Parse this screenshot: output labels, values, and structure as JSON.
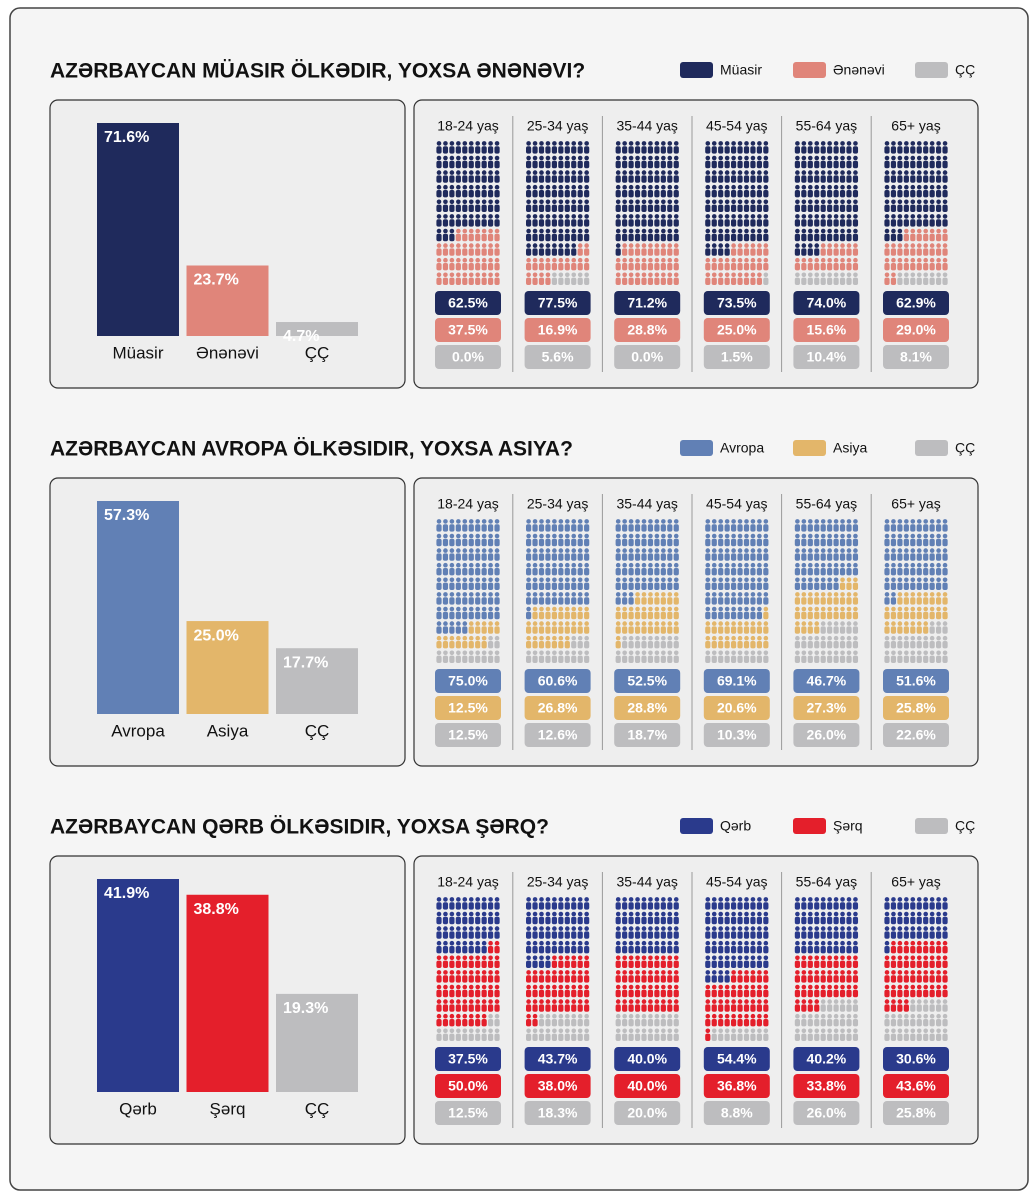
{
  "chart_data": [
    {
      "type": "bar",
      "title": "AZƏRBAYCAN MÜASIR ÖLKƏDIR, YOXSA ƏNƏNƏVI?",
      "categories": [
        "Müasir",
        "Ənənəvi",
        "ÇÇ"
      ],
      "values": [
        71.6,
        23.7,
        4.7
      ],
      "value_labels": [
        "71.6%",
        "23.7%",
        "4.7%"
      ],
      "colors": [
        "#1f2a5c",
        "#e0857a",
        "#bdbdbf"
      ]
    },
    {
      "type": "pictogram",
      "categories": [
        "18-24 yaş",
        "25-34 yaş",
        "35-44 yaş",
        "45-54 yaş",
        "55-64 yaş",
        "65+ yaş"
      ],
      "series": [
        {
          "name": "Müasir",
          "color": "#1f2a5c",
          "values": [
            62.5,
            77.5,
            71.2,
            73.5,
            74.0,
            62.9
          ],
          "value_labels": [
            "62.5%",
            "77.5%",
            "71.2%",
            "73.5%",
            "74.0%",
            "62.9%"
          ]
        },
        {
          "name": "Ənənəvi",
          "color": "#e0857a",
          "values": [
            37.5,
            16.9,
            28.8,
            25.0,
            15.6,
            29.0
          ],
          "value_labels": [
            "37.5%",
            "16.9%",
            "28.8%",
            "25.0%",
            "15.6%",
            "29.0%"
          ]
        },
        {
          "name": "ÇÇ",
          "color": "#bdbdbf",
          "values": [
            0.0,
            5.6,
            0.0,
            1.5,
            10.4,
            8.1
          ],
          "value_labels": [
            "0.0%",
            "5.6%",
            "0.0%",
            "1.5%",
            "10.4%",
            "8.1%"
          ]
        }
      ]
    },
    {
      "type": "bar",
      "title": "AZƏRBAYCAN AVROPA ÖLKƏSIDIR, YOXSA ASIYA?",
      "categories": [
        "Avropa",
        "Asiya",
        "ÇÇ"
      ],
      "values": [
        57.3,
        25.0,
        17.7
      ],
      "value_labels": [
        "57.3%",
        "25.0%",
        "17.7%"
      ],
      "colors": [
        "#6180b5",
        "#e3b66a",
        "#bdbdbf"
      ]
    },
    {
      "type": "pictogram",
      "categories": [
        "18-24 yaş",
        "25-34 yaş",
        "35-44 yaş",
        "45-54 yaş",
        "55-64 yaş",
        "65+ yaş"
      ],
      "series": [
        {
          "name": "Avropa",
          "color": "#6180b5",
          "values": [
            75.0,
            60.6,
            52.5,
            69.1,
            46.7,
            51.6
          ],
          "value_labels": [
            "75.0%",
            "60.6%",
            "52.5%",
            "69.1%",
            "46.7%",
            "51.6%"
          ]
        },
        {
          "name": "Asiya",
          "color": "#e3b66a",
          "values": [
            12.5,
            26.8,
            28.8,
            20.6,
            27.3,
            25.8
          ],
          "value_labels": [
            "12.5%",
            "26.8%",
            "28.8%",
            "20.6%",
            "27.3%",
            "25.8%"
          ]
        },
        {
          "name": "ÇÇ",
          "color": "#bdbdbf",
          "values": [
            12.5,
            12.6,
            18.7,
            10.3,
            26.0,
            22.6
          ],
          "value_labels": [
            "12.5%",
            "12.6%",
            "18.7%",
            "10.3%",
            "26.0%",
            "22.6%"
          ]
        }
      ]
    },
    {
      "type": "bar",
      "title": "AZƏRBAYCAN QƏRB ÖLKƏSIDIR, YOXSA ŞƏRQ?",
      "categories": [
        "Qərb",
        "Şərq",
        "ÇÇ"
      ],
      "values": [
        41.9,
        38.8,
        19.3
      ],
      "value_labels": [
        "41.9%",
        "38.8%",
        "19.3%"
      ],
      "colors": [
        "#2a3a8c",
        "#e41f2b",
        "#bdbdbf"
      ]
    },
    {
      "type": "pictogram",
      "categories": [
        "18-24 yaş",
        "25-34 yaş",
        "35-44 yaş",
        "45-54 yaş",
        "55-64 yaş",
        "65+ yaş"
      ],
      "series": [
        {
          "name": "Qərb",
          "color": "#2a3a8c",
          "values": [
            37.5,
            43.7,
            40.0,
            54.4,
            40.2,
            30.6
          ],
          "value_labels": [
            "37.5%",
            "43.7%",
            "40.0%",
            "54.4%",
            "40.2%",
            "30.6%"
          ]
        },
        {
          "name": "Şərq",
          "color": "#e41f2b",
          "values": [
            50.0,
            38.0,
            40.0,
            36.8,
            33.8,
            43.6
          ],
          "value_labels": [
            "50.0%",
            "38.0%",
            "40.0%",
            "36.8%",
            "33.8%",
            "43.6%"
          ]
        },
        {
          "name": "ÇÇ",
          "color": "#bdbdbf",
          "values": [
            12.5,
            18.3,
            20.0,
            8.8,
            26.0,
            25.8
          ],
          "value_labels": [
            "12.5%",
            "18.3%",
            "20.0%",
            "8.8%",
            "26.0%",
            "25.8%"
          ]
        }
      ]
    }
  ]
}
